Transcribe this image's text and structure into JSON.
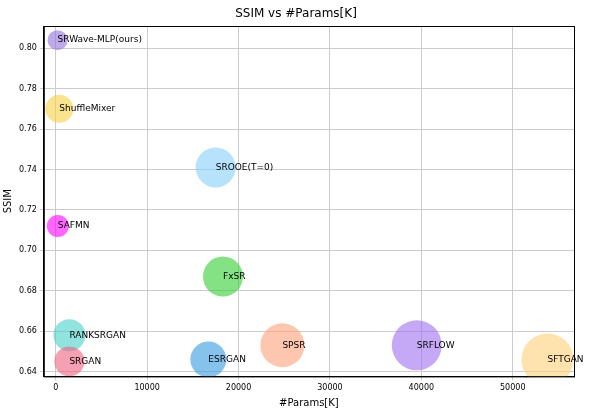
{
  "chart_data": {
    "type": "bubble",
    "title": "SSIM vs #Params[K]",
    "x_label": "#Params[K]",
    "y_label": "SSIM",
    "labels": [
      "SRWave-MLP(ours)",
      "ShuffleMixer",
      "SROOE(T=0)",
      "SAFMN",
      "FxSR",
      "RANKSRGAN",
      "SRGAN",
      "ESRGAN",
      "SPSR",
      "SRFLOW",
      "SFTGAN"
    ],
    "x": [
      200,
      400,
      17500,
      230,
      18300,
      1500,
      1500,
      16700,
      24800,
      39500,
      53800
    ],
    "values": [
      0.804,
      0.77,
      0.741,
      0.712,
      0.687,
      0.658,
      0.645,
      0.646,
      0.653,
      0.653,
      0.646
    ],
    "sizes": [
      10,
      14,
      20,
      11,
      20,
      16,
      15,
      18,
      22,
      25,
      26
    ],
    "colors": [
      "#9370db",
      "#f5d142",
      "#87cefa",
      "#ff00ff",
      "#32cd32",
      "#48d1cc",
      "#f06080",
      "#3399e0",
      "#ffa07a",
      "#a070f0",
      "#ffd07a"
    ],
    "xlim": [
      -1300,
      56700
    ],
    "xticks": [
      0,
      10000,
      20000,
      30000,
      40000,
      50000
    ],
    "ylim": [
      0.6376,
      0.811
    ],
    "yticks": [
      0.64,
      0.66,
      0.68,
      {
        "value": 0.7,
        "label": "0.70"
      },
      0.72,
      0.74,
      0.76,
      0.78,
      {
        "value": 0.8,
        "label": "0.80"
      }
    ],
    "grid": true
  }
}
